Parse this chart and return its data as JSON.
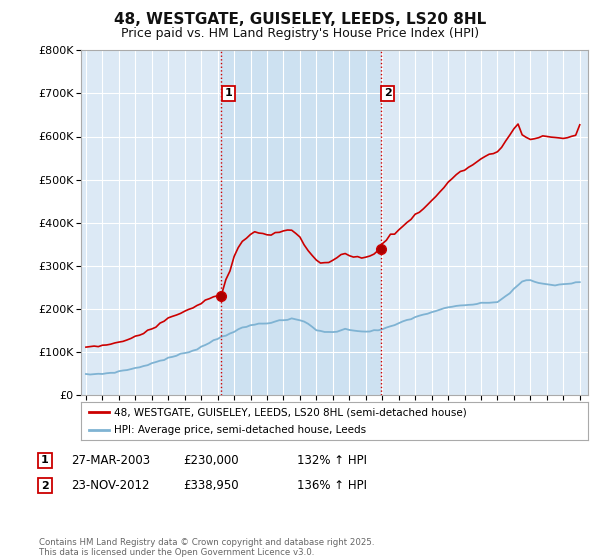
{
  "title": "48, WESTGATE, GUISELEY, LEEDS, LS20 8HL",
  "subtitle": "Price paid vs. HM Land Registry's House Price Index (HPI)",
  "title_fontsize": 11,
  "subtitle_fontsize": 9,
  "ylim": [
    0,
    800000
  ],
  "ytick_values": [
    0,
    100000,
    200000,
    300000,
    400000,
    500000,
    600000,
    700000,
    800000
  ],
  "background_color": "#ffffff",
  "plot_bg_color": "#dce9f5",
  "grid_color": "#ffffff",
  "red_line_color": "#cc0000",
  "blue_line_color": "#7fb3d3",
  "shade_color": "#c8dff0",
  "sale1_year": 2003.23,
  "sale1_price": 230000,
  "sale1_label": "1",
  "sale2_year": 2012.9,
  "sale2_price": 338950,
  "sale2_label": "2",
  "vline_color": "#cc0000",
  "legend_line1": "48, WESTGATE, GUISELEY, LEEDS, LS20 8HL (semi-detached house)",
  "legend_line2": "HPI: Average price, semi-detached house, Leeds",
  "note1_date": "27-MAR-2003",
  "note1_price": "£230,000",
  "note1_hpi": "132% ↑ HPI",
  "note2_date": "23-NOV-2012",
  "note2_price": "£338,950",
  "note2_hpi": "136% ↑ HPI",
  "footer": "Contains HM Land Registry data © Crown copyright and database right 2025.\nThis data is licensed under the Open Government Licence v3.0.",
  "hpi_x": [
    1995.0,
    1995.25,
    1995.5,
    1995.75,
    1996.0,
    1996.25,
    1996.5,
    1996.75,
    1997.0,
    1997.25,
    1997.5,
    1997.75,
    1998.0,
    1998.25,
    1998.5,
    1998.75,
    1999.0,
    1999.25,
    1999.5,
    1999.75,
    2000.0,
    2000.25,
    2000.5,
    2000.75,
    2001.0,
    2001.25,
    2001.5,
    2001.75,
    2002.0,
    2002.25,
    2002.5,
    2002.75,
    2003.0,
    2003.25,
    2003.5,
    2003.75,
    2004.0,
    2004.25,
    2004.5,
    2004.75,
    2005.0,
    2005.25,
    2005.5,
    2005.75,
    2006.0,
    2006.25,
    2006.5,
    2006.75,
    2007.0,
    2007.25,
    2007.5,
    2007.75,
    2008.0,
    2008.25,
    2008.5,
    2008.75,
    2009.0,
    2009.25,
    2009.5,
    2009.75,
    2010.0,
    2010.25,
    2010.5,
    2010.75,
    2011.0,
    2011.25,
    2011.5,
    2011.75,
    2012.0,
    2012.25,
    2012.5,
    2012.75,
    2013.0,
    2013.25,
    2013.5,
    2013.75,
    2014.0,
    2014.25,
    2014.5,
    2014.75,
    2015.0,
    2015.25,
    2015.5,
    2015.75,
    2016.0,
    2016.25,
    2016.5,
    2016.75,
    2017.0,
    2017.25,
    2017.5,
    2017.75,
    2018.0,
    2018.25,
    2018.5,
    2018.75,
    2019.0,
    2019.25,
    2019.5,
    2019.75,
    2020.0,
    2020.25,
    2020.5,
    2020.75,
    2021.0,
    2021.25,
    2021.5,
    2021.75,
    2022.0,
    2022.25,
    2022.5,
    2022.75,
    2023.0,
    2023.25,
    2023.5,
    2023.75,
    2024.0,
    2024.25,
    2024.5,
    2024.75,
    2025.0
  ],
  "hpi_y": [
    47000,
    47500,
    48000,
    48500,
    49000,
    50000,
    51000,
    52500,
    54000,
    56000,
    58000,
    60000,
    62000,
    64000,
    67000,
    70000,
    73000,
    76000,
    79000,
    82000,
    85000,
    88000,
    91000,
    94000,
    97000,
    100000,
    103000,
    107000,
    111000,
    116000,
    121000,
    126000,
    131000,
    135000,
    139000,
    143000,
    147000,
    151000,
    155000,
    158000,
    161000,
    163000,
    165000,
    166000,
    167000,
    168500,
    170000,
    171500,
    173000,
    174500,
    176000,
    175000,
    173000,
    170000,
    165000,
    158000,
    151000,
    148000,
    146000,
    145000,
    146000,
    148000,
    150000,
    152000,
    151000,
    150000,
    149000,
    148000,
    147000,
    148000,
    149000,
    150000,
    152000,
    155000,
    158000,
    162000,
    166000,
    170000,
    174000,
    177000,
    180000,
    183000,
    186000,
    189000,
    192000,
    195000,
    198000,
    200000,
    202000,
    204000,
    206000,
    207000,
    208000,
    209000,
    210000,
    211000,
    212000,
    213000,
    214000,
    215000,
    216000,
    222000,
    229000,
    237000,
    246000,
    255000,
    262000,
    266000,
    265000,
    263000,
    260000,
    258000,
    256000,
    255000,
    255000,
    256000,
    257000,
    258000,
    259000,
    260000,
    262000
  ],
  "red_x": [
    1995.0,
    1995.25,
    1995.5,
    1995.75,
    1996.0,
    1996.25,
    1996.5,
    1996.75,
    1997.0,
    1997.25,
    1997.5,
    1997.75,
    1998.0,
    1998.25,
    1998.5,
    1998.75,
    1999.0,
    1999.25,
    1999.5,
    1999.75,
    2000.0,
    2000.25,
    2000.5,
    2000.75,
    2001.0,
    2001.25,
    2001.5,
    2001.75,
    2002.0,
    2002.25,
    2002.5,
    2002.75,
    2003.0,
    2003.23,
    2003.5,
    2003.75,
    2004.0,
    2004.25,
    2004.5,
    2004.75,
    2005.0,
    2005.25,
    2005.5,
    2005.75,
    2006.0,
    2006.25,
    2006.5,
    2006.75,
    2007.0,
    2007.25,
    2007.5,
    2007.75,
    2008.0,
    2008.25,
    2008.5,
    2008.75,
    2009.0,
    2009.25,
    2009.5,
    2009.75,
    2010.0,
    2010.25,
    2010.5,
    2010.75,
    2011.0,
    2011.25,
    2011.5,
    2011.75,
    2012.0,
    2012.25,
    2012.5,
    2012.9,
    2013.0,
    2013.25,
    2013.5,
    2013.75,
    2014.0,
    2014.25,
    2014.5,
    2014.75,
    2015.0,
    2015.25,
    2015.5,
    2015.75,
    2016.0,
    2016.25,
    2016.5,
    2016.75,
    2017.0,
    2017.25,
    2017.5,
    2017.75,
    2018.0,
    2018.25,
    2018.5,
    2018.75,
    2019.0,
    2019.25,
    2019.5,
    2019.75,
    2020.0,
    2020.25,
    2020.5,
    2020.75,
    2021.0,
    2021.25,
    2021.5,
    2021.75,
    2022.0,
    2022.25,
    2022.5,
    2022.75,
    2023.0,
    2023.25,
    2023.5,
    2023.75,
    2024.0,
    2024.25,
    2024.5,
    2024.75,
    2025.0
  ],
  "red_y": [
    112000,
    111000,
    113000,
    112000,
    114000,
    115000,
    117000,
    119000,
    122000,
    125000,
    128000,
    132000,
    136000,
    140000,
    145000,
    150000,
    155000,
    160000,
    166000,
    172000,
    178000,
    183000,
    187000,
    191000,
    195000,
    199000,
    203000,
    208000,
    214000,
    220000,
    226000,
    228000,
    229000,
    230000,
    265000,
    290000,
    320000,
    340000,
    355000,
    365000,
    372000,
    376000,
    378000,
    374000,
    370000,
    372000,
    376000,
    379000,
    382000,
    384000,
    382000,
    375000,
    365000,
    350000,
    335000,
    322000,
    312000,
    308000,
    306000,
    308000,
    312000,
    318000,
    324000,
    328000,
    326000,
    322000,
    320000,
    318000,
    318000,
    322000,
    328000,
    338950,
    352000,
    362000,
    370000,
    376000,
    382000,
    390000,
    400000,
    410000,
    418000,
    426000,
    434000,
    442000,
    450000,
    460000,
    470000,
    482000,
    494000,
    504000,
    512000,
    518000,
    522000,
    528000,
    535000,
    542000,
    548000,
    554000,
    558000,
    560000,
    562000,
    575000,
    590000,
    605000,
    618000,
    628000,
    605000,
    598000,
    592000,
    595000,
    598000,
    600000,
    600000,
    598000,
    596000,
    595000,
    596000,
    598000,
    600000,
    603000,
    630000
  ]
}
